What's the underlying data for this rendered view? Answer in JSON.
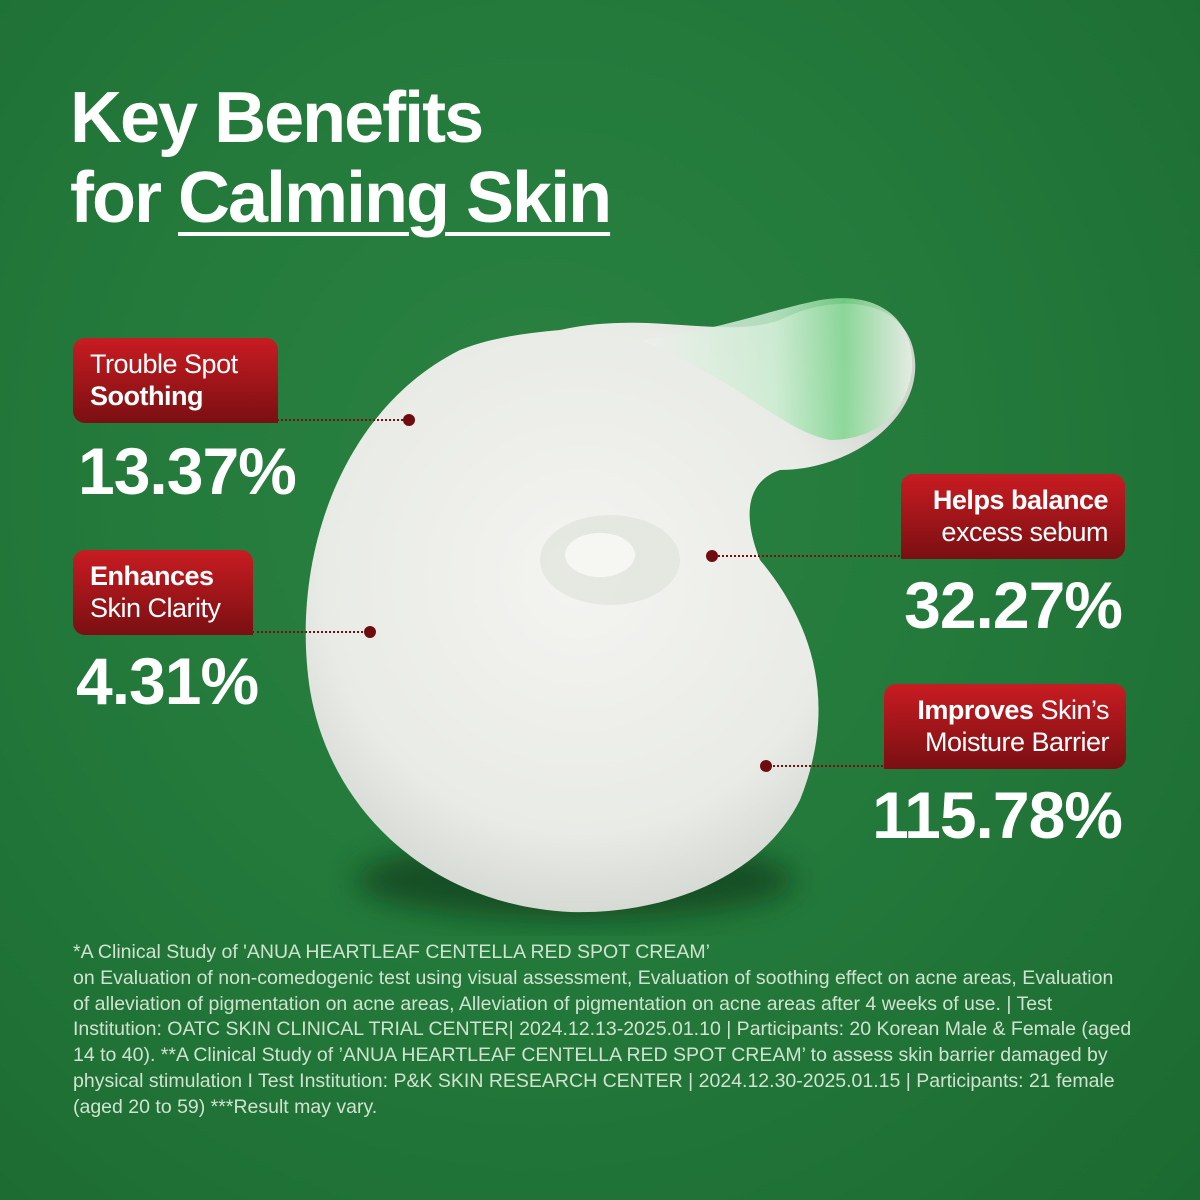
{
  "title": {
    "line1": "Key Benefits",
    "line2_prefix": "for ",
    "line2_underlined": "Calming Skin"
  },
  "benefits": [
    {
      "regular": "Trouble Spot",
      "bold": "Soothing",
      "value": "13.37%"
    },
    {
      "bold": "Enhances",
      "regular": "Skin Clarity",
      "value": "4.31%"
    },
    {
      "bold": "Helps balance",
      "regular": "excess sebum",
      "value": "32.27%"
    },
    {
      "bold": "Improves",
      "regular": " Skin’s",
      "regular2": "Moisture Barrier",
      "value": "115.78%"
    }
  ],
  "colors": {
    "background": "#237a3b",
    "label": "#b0171d",
    "text": "#ffffff"
  },
  "footnote": "*A Clinical Study of 'ANUA HEARTLEAF CENTELLA RED SPOT CREAM’\n on Evaluation of non-comedogenic test using visual assessment, Evaluation of soothing effect on acne areas, Evaluation of alleviation of pigmentation on acne areas, Alleviation of pigmentation on acne areas after 4 weeks of use. | Test Institution: OATC SKIN CLINICAL TRIAL CENTER| 2024.12.13-2025.01.10 | Participants: 20 Korean Male & Female (aged 14 to 40). **A Clinical Study of ’ANUA HEARTLEAF CENTELLA RED SPOT CREAM’ to assess skin barrier damaged by physical stimulation I Test Institution: P&K SKIN RESEARCH CENTER | 2024.12.30-2025.01.15 | Participants: 21 female (aged 20 to 59)  ***Result may vary."
}
